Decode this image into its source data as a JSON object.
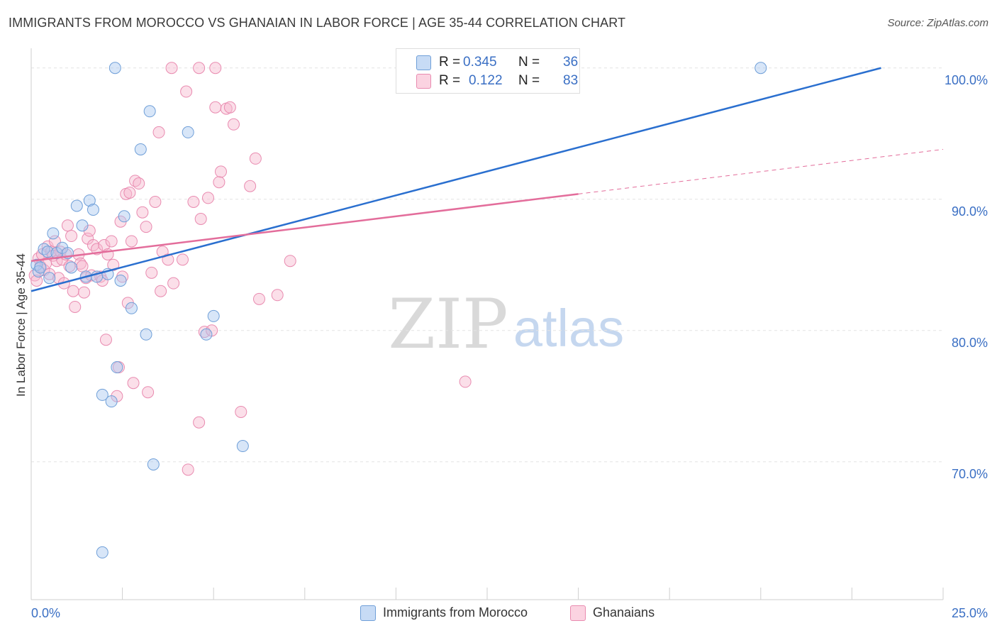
{
  "title": "IMMIGRANTS FROM MOROCCO VS GHANAIAN IN LABOR FORCE | AGE 35-44 CORRELATION CHART",
  "source": "Source: ZipAtlas.com",
  "watermark": {
    "zip": "ZIP",
    "atlas": "atlas"
  },
  "legend": {
    "rows": [
      {
        "r_label": "R =",
        "r_value": "0.345",
        "n_label": "N =",
        "n_value": "36"
      },
      {
        "r_label": "R =",
        "r_value": "0.122",
        "n_label": "N =",
        "n_value": "83"
      }
    ]
  },
  "colors": {
    "blue_fill": "#a9c8f0",
    "blue_stroke": "#6f9fd8",
    "blue_line": "#2a6fcf",
    "pink_fill": "#f7b9cf",
    "pink_stroke": "#e98bb0",
    "pink_line": "#e36d9b",
    "axis_text": "#3a6fc4",
    "grid": "#e4e4e4"
  },
  "chart_data": {
    "type": "scatter",
    "title": "IMMIGRANTS FROM MOROCCO VS GHANAIAN IN LABOR FORCE | AGE 35-44 CORRELATION CHART",
    "xlabel": "",
    "ylabel": "In Labor Force | Age 35-44",
    "xlim": [
      0,
      25
    ],
    "ylim": [
      59.5,
      101.5
    ],
    "x_tick_labels": [
      "0.0%",
      "25.0%"
    ],
    "y_ticks": [
      {
        "value": 70,
        "label": "70.0%"
      },
      {
        "value": 80,
        "label": "80.0%"
      },
      {
        "value": 90,
        "label": "90.0%"
      },
      {
        "value": 100,
        "label": "100.0%"
      }
    ],
    "grid": true,
    "legend_position": "top-center",
    "series": [
      {
        "name": "Immigrants from Morocco",
        "color": "#a9c8f0",
        "r": 0.345,
        "n": 36,
        "trend": {
          "x": [
            0,
            23.3
          ],
          "y": [
            83.0,
            100.0
          ],
          "style": "solid"
        },
        "points": [
          [
            0.15,
            85.0
          ],
          [
            0.2,
            84.5
          ],
          [
            0.25,
            84.8
          ],
          [
            0.35,
            86.2
          ],
          [
            0.45,
            86.0
          ],
          [
            0.6,
            87.4
          ],
          [
            0.7,
            85.9
          ],
          [
            0.85,
            86.3
          ],
          [
            1.0,
            85.9
          ],
          [
            1.1,
            84.8
          ],
          [
            1.25,
            89.5
          ],
          [
            1.4,
            88.0
          ],
          [
            1.5,
            84.1
          ],
          [
            1.6,
            89.9
          ],
          [
            1.7,
            89.2
          ],
          [
            1.8,
            84.1
          ],
          [
            1.95,
            75.1
          ],
          [
            2.1,
            84.3
          ],
          [
            2.2,
            74.6
          ],
          [
            2.3,
            100.0
          ],
          [
            2.35,
            77.2
          ],
          [
            2.45,
            83.8
          ],
          [
            2.55,
            88.7
          ],
          [
            2.75,
            81.7
          ],
          [
            3.0,
            93.8
          ],
          [
            3.15,
            79.7
          ],
          [
            3.25,
            96.7
          ],
          [
            3.35,
            69.8
          ],
          [
            4.3,
            95.1
          ],
          [
            4.8,
            79.7
          ],
          [
            5.0,
            81.1
          ],
          [
            5.8,
            71.2
          ],
          [
            1.95,
            63.1
          ],
          [
            14.5,
            100.0
          ],
          [
            20.0,
            100.0
          ],
          [
            0.5,
            84.0
          ]
        ]
      },
      {
        "name": "Ghanaians",
        "color": "#f7b9cf",
        "r": 0.122,
        "n": 83,
        "trend": {
          "x": [
            0,
            15
          ],
          "y": [
            85.3,
            90.4
          ],
          "style": "solid",
          "dashed_extension": {
            "x": [
              15,
              25
            ],
            "y": [
              90.4,
              93.8
            ]
          }
        },
        "points": [
          [
            0.1,
            84.2
          ],
          [
            0.15,
            83.8
          ],
          [
            0.2,
            85.5
          ],
          [
            0.25,
            84.9
          ],
          [
            0.3,
            85.8
          ],
          [
            0.35,
            84.6
          ],
          [
            0.4,
            85.1
          ],
          [
            0.45,
            86.4
          ],
          [
            0.5,
            84.3
          ],
          [
            0.55,
            86.0
          ],
          [
            0.6,
            85.7
          ],
          [
            0.65,
            86.8
          ],
          [
            0.7,
            85.3
          ],
          [
            0.75,
            84.0
          ],
          [
            0.8,
            86.0
          ],
          [
            0.85,
            85.4
          ],
          [
            0.9,
            83.6
          ],
          [
            0.95,
            85.8
          ],
          [
            1.0,
            88.0
          ],
          [
            1.05,
            84.9
          ],
          [
            1.1,
            87.2
          ],
          [
            1.15,
            83.0
          ],
          [
            1.2,
            81.8
          ],
          [
            1.3,
            85.8
          ],
          [
            1.35,
            85.1
          ],
          [
            1.4,
            84.9
          ],
          [
            1.45,
            82.9
          ],
          [
            1.5,
            84.0
          ],
          [
            1.55,
            87.0
          ],
          [
            1.6,
            87.6
          ],
          [
            1.65,
            84.2
          ],
          [
            1.7,
            86.5
          ],
          [
            1.8,
            86.2
          ],
          [
            1.9,
            84.1
          ],
          [
            1.95,
            83.8
          ],
          [
            2.0,
            86.5
          ],
          [
            2.05,
            79.3
          ],
          [
            2.1,
            85.8
          ],
          [
            2.2,
            86.8
          ],
          [
            2.25,
            85.0
          ],
          [
            2.35,
            75.0
          ],
          [
            2.4,
            77.2
          ],
          [
            2.45,
            88.3
          ],
          [
            2.5,
            84.1
          ],
          [
            2.6,
            90.4
          ],
          [
            2.65,
            82.1
          ],
          [
            2.7,
            90.5
          ],
          [
            2.75,
            86.8
          ],
          [
            2.8,
            76.0
          ],
          [
            2.85,
            91.4
          ],
          [
            2.95,
            91.2
          ],
          [
            3.05,
            89.0
          ],
          [
            3.15,
            87.9
          ],
          [
            3.2,
            75.3
          ],
          [
            3.3,
            84.4
          ],
          [
            3.4,
            89.8
          ],
          [
            3.5,
            95.1
          ],
          [
            3.55,
            83.0
          ],
          [
            3.6,
            86.0
          ],
          [
            3.75,
            85.4
          ],
          [
            3.85,
            100.0
          ],
          [
            3.9,
            83.6
          ],
          [
            4.15,
            85.4
          ],
          [
            4.25,
            98.2
          ],
          [
            4.3,
            69.4
          ],
          [
            4.45,
            89.8
          ],
          [
            4.6,
            73.0
          ],
          [
            4.65,
            88.5
          ],
          [
            4.75,
            79.9
          ],
          [
            4.85,
            90.1
          ],
          [
            4.95,
            80.0
          ],
          [
            5.05,
            97.0
          ],
          [
            5.15,
            91.3
          ],
          [
            5.2,
            92.1
          ],
          [
            5.35,
            96.9
          ],
          [
            5.45,
            97.0
          ],
          [
            5.55,
            95.7
          ],
          [
            5.75,
            73.8
          ],
          [
            6.0,
            91.0
          ],
          [
            6.15,
            93.1
          ],
          [
            6.25,
            82.4
          ],
          [
            6.75,
            82.7
          ],
          [
            7.1,
            85.3
          ]
        ],
        "extra_points": [
          [
            4.6,
            100.0
          ],
          [
            5.05,
            100.0
          ],
          [
            11.9,
            76.1
          ]
        ]
      }
    ]
  },
  "bottom_legend": [
    {
      "label": "Immigrants from Morocco"
    },
    {
      "label": "Ghanaians"
    }
  ]
}
